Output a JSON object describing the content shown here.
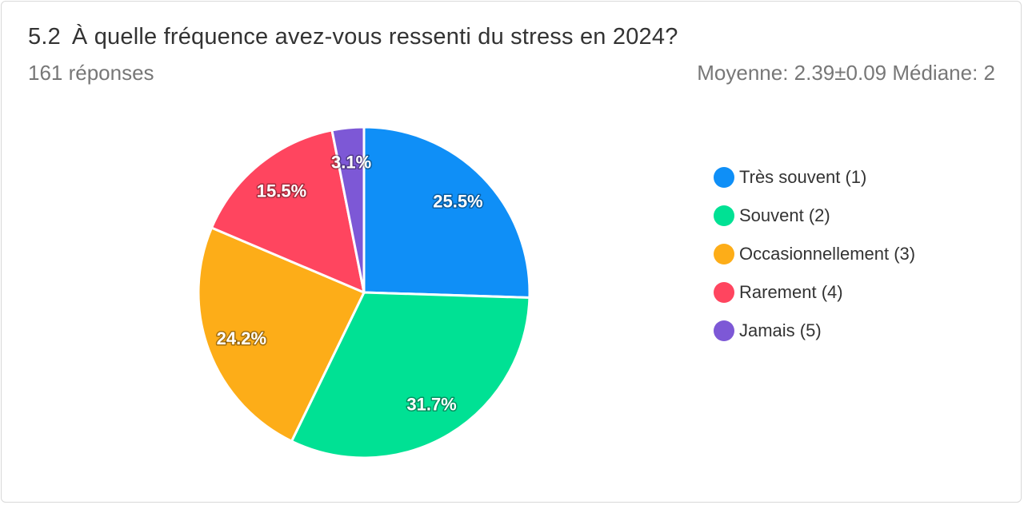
{
  "header": {
    "question_number": "5.2",
    "question_text": "À quelle fréquence avez-vous ressenti du stress en 2024?",
    "responses": "161 réponses",
    "stats": "Moyenne: 2.39±0.09 Médiane: 2"
  },
  "chart_data": {
    "type": "pie",
    "categories": [
      "Très souvent (1)",
      "Souvent (2)",
      "Occasionnellement (3)",
      "Rarement (4)",
      "Jamais (5)"
    ],
    "values": [
      25.5,
      31.7,
      24.2,
      15.5,
      3.1
    ],
    "value_labels": [
      "25.5%",
      "31.7%",
      "24.2%",
      "15.5%",
      "3.1%"
    ],
    "colors": [
      "#0f8ff7",
      "#00e194",
      "#fdad18",
      "#ff455f",
      "#7d58d6"
    ],
    "legend_position": "right",
    "start_angle": "top",
    "direction": "clockwise"
  }
}
